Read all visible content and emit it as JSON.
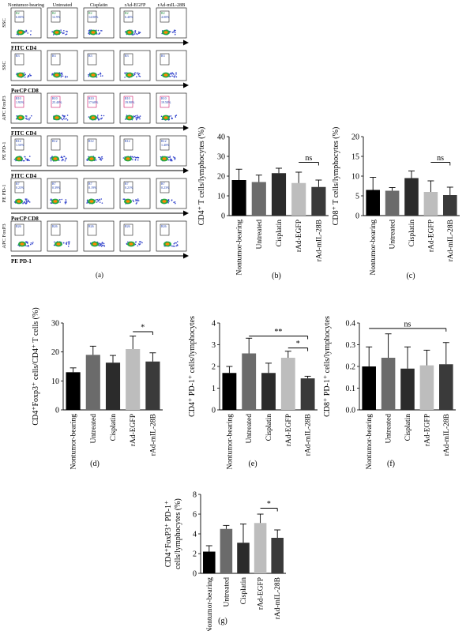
{
  "flow_panel": {
    "label": "(a)",
    "column_headers": [
      "Nontumor-bearing",
      "Untreated",
      "Cisplatin",
      "rAd-EGFP",
      "rAd-mIL-28B"
    ],
    "rows": [
      {
        "y_label": "SSC",
        "x_label": "FITC CD4",
        "gate": "R2",
        "gate_values": [
          "6.00%",
          "12.9%",
          "14.00%",
          "6.40%",
          "4.00%"
        ]
      },
      {
        "y_label": "SSC",
        "x_label": "PerCP CD8",
        "gate": "R3",
        "gate_values": [
          "",
          "",
          "",
          "",
          ""
        ]
      },
      {
        "y_label": "APC FoxP3",
        "x_label": "FITC CD4",
        "gate": "R10",
        "gate_values": [
          "1.93%",
          "25.40%",
          "17.60%",
          "19.90%",
          "19.50%"
        ]
      },
      {
        "y_label": "PE PD-1",
        "x_label": "FITC CD4",
        "gate": "R12",
        "gate_values": [
          "1.50%",
          "",
          "",
          "",
          "1.40%"
        ]
      },
      {
        "y_label": "PE PD-1",
        "x_label": "PerCP CD8",
        "gate": "R7",
        "gate_values": [
          "0.23%",
          "0.39%",
          "0.19%",
          "0.21%",
          "0.23%"
        ]
      },
      {
        "y_label": "APC FoxP3",
        "x_label": "PE PD-1",
        "gate": "R26",
        "gate_values": [
          "",
          "",
          "",
          "",
          ""
        ]
      }
    ]
  },
  "chart_data": [
    {
      "id": "b",
      "type": "bar",
      "panel_label": "(b)",
      "categories": [
        "Nontumor-bearing",
        "Untreated",
        "Cisplatin",
        "rAd-EGFP",
        "rAd-mIL-28B"
      ],
      "values": [
        18,
        17,
        21.5,
        16.5,
        14.5
      ],
      "errors": [
        5.5,
        3.5,
        2.5,
        5.5,
        3.5
      ],
      "colors": [
        "#000000",
        "#6b6b6b",
        "#2b2b2b",
        "#bdbdbd",
        "#3a3a3a"
      ],
      "ylabel": "CD4⁺ T cells/lymphocytes (%)",
      "ylim": [
        0,
        40
      ],
      "yticks": [
        0,
        10,
        20,
        30,
        40
      ],
      "sig": [
        {
          "from": 3,
          "to": 4,
          "label": "ns",
          "y": 27
        }
      ]
    },
    {
      "id": "c",
      "type": "bar",
      "panel_label": "(c)",
      "categories": [
        "Nontumor-bearing",
        "Untreated",
        "Cisplatin",
        "rAd-EGFP",
        "rAd-mIL-28B"
      ],
      "values": [
        6.5,
        6.3,
        9.5,
        6,
        5.2
      ],
      "errors": [
        3.2,
        0.8,
        1.8,
        2.8,
        2
      ],
      "colors": [
        "#000000",
        "#6b6b6b",
        "#2b2b2b",
        "#bdbdbd",
        "#3a3a3a"
      ],
      "ylabel": "CD8⁺ T cells/lymphocytes (%)",
      "ylim": [
        0,
        20
      ],
      "yticks": [
        0,
        5,
        10,
        15,
        20
      ],
      "sig": [
        {
          "from": 3,
          "to": 4,
          "label": "ns",
          "y": 13.5
        }
      ]
    },
    {
      "id": "d",
      "type": "bar",
      "panel_label": "(d)",
      "categories": [
        "Nontumor-bearing",
        "Untreated",
        "Cisplatin",
        "rAd-EGFP",
        "rAd-mIL-28B"
      ],
      "values": [
        13,
        19,
        16.3,
        21,
        16.7
      ],
      "errors": [
        1.5,
        3,
        2.5,
        4.5,
        3
      ],
      "colors": [
        "#000000",
        "#6b6b6b",
        "#2b2b2b",
        "#bdbdbd",
        "#3a3a3a"
      ],
      "ylabel": "CD4⁺Foxp3⁺ cells/CD4⁺ T cells (%)",
      "ylim": [
        0,
        30
      ],
      "yticks": [
        0,
        10,
        20,
        30
      ],
      "sig": [
        {
          "from": 3,
          "to": 4,
          "label": "*",
          "y": 27
        }
      ]
    },
    {
      "id": "e",
      "type": "bar",
      "panel_label": "(e)",
      "categories": [
        "Nontumor-bearing",
        "Untreated",
        "Cisplatin",
        "rAd-EGFP",
        "rAd-mIL-28B"
      ],
      "values": [
        1.7,
        2.6,
        1.7,
        2.4,
        1.45
      ],
      "errors": [
        0.3,
        0.7,
        0.45,
        0.3,
        0.1
      ],
      "colors": [
        "#000000",
        "#6b6b6b",
        "#2b2b2b",
        "#bdbdbd",
        "#3a3a3a"
      ],
      "ylabel": "CD4⁺ PD-1⁺ cells/lymphocytes",
      "ylim": [
        0,
        4
      ],
      "yticks": [
        0,
        1,
        2,
        3,
        4
      ],
      "sig": [
        {
          "from": 1,
          "to": 4,
          "label": "**",
          "y": 3.4
        },
        {
          "from": 3,
          "to": 4,
          "label": "*",
          "y": 2.85
        }
      ]
    },
    {
      "id": "f",
      "type": "bar",
      "panel_label": "(f)",
      "categories": [
        "Nontumor-bearing",
        "Untreated",
        "Cisplatin",
        "rAd-EGFP",
        "rAd-mIL-28B"
      ],
      "values": [
        0.2,
        0.24,
        0.19,
        0.205,
        0.21
      ],
      "errors": [
        0.09,
        0.11,
        0.1,
        0.07,
        0.1
      ],
      "colors": [
        "#000000",
        "#6b6b6b",
        "#2b2b2b",
        "#bdbdbd",
        "#3a3a3a"
      ],
      "ylabel": "CD8⁺ PD-1⁺ cells/lymphocytes",
      "ylim": [
        0,
        0.4
      ],
      "yticks": [
        0.0,
        0.1,
        0.2,
        0.3,
        0.4
      ],
      "sig": [
        {
          "from": 0,
          "to": 4,
          "label": "ns",
          "y": 0.375
        }
      ]
    },
    {
      "id": "g",
      "type": "bar",
      "panel_label": "(g)",
      "categories": [
        "Nontumor-bearing",
        "Untreated",
        "Cisplatin",
        "rAd-EGFP",
        "rAd-mIL-28B"
      ],
      "values": [
        2.2,
        4.5,
        3.1,
        5.1,
        3.6
      ],
      "errors": [
        0.6,
        0.35,
        1.9,
        0.9,
        0.8
      ],
      "colors": [
        "#000000",
        "#6b6b6b",
        "#2b2b2b",
        "#bdbdbd",
        "#3a3a3a"
      ],
      "ylabel": "CD4⁺FoxP3⁺ PD-1⁺ cells/lymphocytes (%)",
      "ylim": [
        0,
        8
      ],
      "yticks": [
        0,
        2,
        4,
        6,
        8
      ],
      "sig": [
        {
          "from": 3,
          "to": 4,
          "label": "*",
          "y": 6.6
        }
      ]
    }
  ]
}
